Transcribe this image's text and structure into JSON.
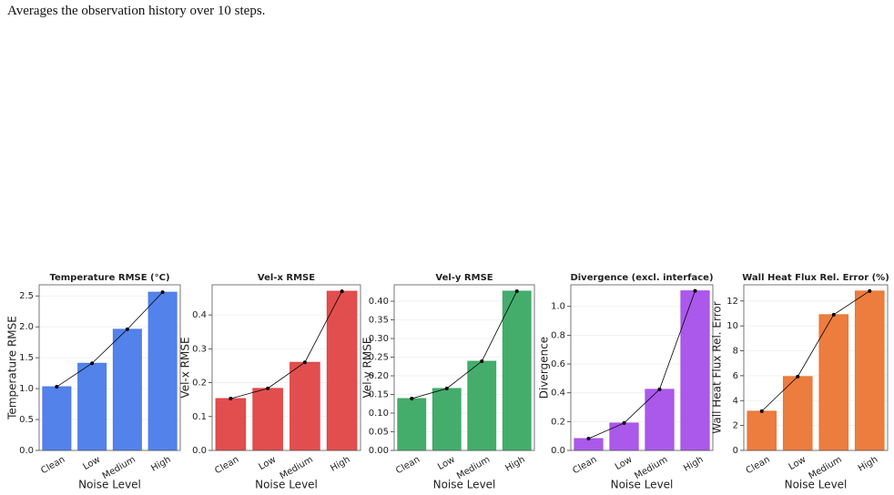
{
  "caption": "Averages the observation history over 10 steps.",
  "chart_data": [
    {
      "type": "bar",
      "title": "Temperature RMSE (°C)",
      "xlabel": "Noise Level",
      "ylabel": "Temperature RMSE",
      "categories": [
        "Clean",
        "Low",
        "Medium",
        "High"
      ],
      "values": [
        1.03,
        1.41,
        1.96,
        2.56
      ],
      "color": "#4a7bea",
      "ylim": [
        0,
        2.68
      ],
      "yticks": [
        {
          "value": 0,
          "label": "0.0"
        },
        0.5,
        {
          "value": 1,
          "label": "1.0"
        },
        1.5,
        {
          "value": 2,
          "label": "2.0"
        },
        2.5
      ],
      "grid": true,
      "line_overlay": true
    },
    {
      "type": "bar",
      "title": "Vel-x RMSE",
      "xlabel": "Noise Level",
      "ylabel": "Vel-x RMSE",
      "categories": [
        "Clean",
        "Low",
        "Medium",
        "High"
      ],
      "values": [
        0.153,
        0.183,
        0.26,
        0.47
      ],
      "color": "#e04444",
      "ylim": [
        0,
        0.489
      ],
      "yticks": [
        {
          "value": 0,
          "label": "0.0"
        },
        0.1,
        0.2,
        0.3,
        0.4
      ],
      "grid": true,
      "line_overlay": true
    },
    {
      "type": "bar",
      "title": "Vel-y RMSE",
      "xlabel": "Noise Level",
      "ylabel": "Vel-y RMSE",
      "categories": [
        "Clean",
        "Low",
        "Medium",
        "High"
      ],
      "values": [
        0.139,
        0.166,
        0.239,
        0.427
      ],
      "color": "#3aa964",
      "ylim": [
        0,
        0.444
      ],
      "yticks": [
        {
          "value": 0,
          "label": "0.00"
        },
        0.05,
        {
          "value": 0.1,
          "label": "0.10"
        },
        0.15,
        {
          "value": 0.2,
          "label": "0.20"
        },
        0.25,
        {
          "value": 0.3,
          "label": "0.30"
        },
        0.35,
        {
          "value": 0.4,
          "label": "0.40"
        }
      ],
      "grid": true,
      "line_overlay": true
    },
    {
      "type": "bar",
      "title": "Divergence (excl. interface)",
      "xlabel": "Noise Level",
      "ylabel": "Divergence",
      "categories": [
        "Clean",
        "Low",
        "Medium",
        "High"
      ],
      "values": [
        0.082,
        0.19,
        0.424,
        1.108
      ],
      "color": "#a550ea",
      "ylim": [
        0,
        1.15
      ],
      "yticks": [
        {
          "value": 0,
          "label": "0.0"
        },
        0.2,
        0.4,
        0.6,
        0.8,
        {
          "value": 1,
          "label": "1.0"
        }
      ],
      "grid": true,
      "line_overlay": true
    },
    {
      "type": "bar",
      "title": "Wall Heat Flux Rel. Error (%)",
      "xlabel": "Noise Level",
      "ylabel": "Wall Heat Flux Rel. Error",
      "categories": [
        "Clean",
        "Low",
        "Medium",
        "High"
      ],
      "values": [
        3.15,
        5.93,
        10.9,
        12.8
      ],
      "color": "#ec7535",
      "ylim": [
        0,
        13.3
      ],
      "yticks": [
        0,
        2,
        4,
        6,
        8,
        10,
        12
      ],
      "grid": true,
      "line_overlay": true
    }
  ]
}
